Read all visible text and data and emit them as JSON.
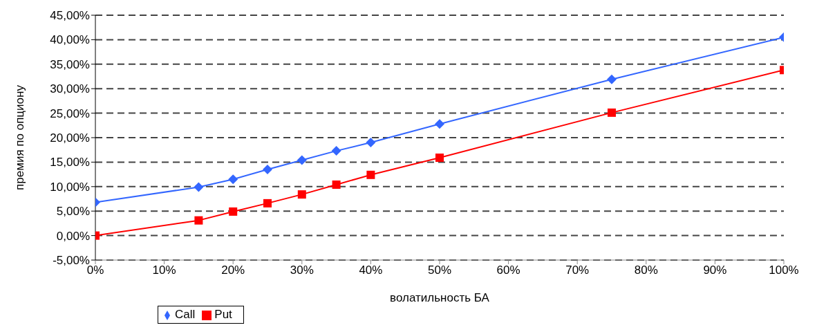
{
  "chart_data": {
    "type": "line",
    "xlabel": "волатильность БА",
    "ylabel": "премия по опциону",
    "x": [
      0,
      15,
      20,
      25,
      30,
      35,
      40,
      50,
      75,
      100
    ],
    "series": [
      {
        "name": "Call",
        "color": "#3366ff",
        "marker": "diamond",
        "values": [
          6.8,
          9.9,
          11.5,
          13.5,
          15.4,
          17.3,
          19.0,
          22.8,
          31.9,
          40.5
        ]
      },
      {
        "name": "Put",
        "color": "#ff0000",
        "marker": "square",
        "values": [
          0,
          3.1,
          4.9,
          6.6,
          8.4,
          10.4,
          12.4,
          15.9,
          25.1,
          33.8
        ]
      }
    ],
    "xlim": [
      0,
      100
    ],
    "xticks": [
      {
        "value": 0,
        "label": "0%"
      },
      {
        "value": 10,
        "label": "10%"
      },
      {
        "value": 20,
        "label": "20%"
      },
      {
        "value": 30,
        "label": "30%"
      },
      {
        "value": 40,
        "label": "40%"
      },
      {
        "value": 50,
        "label": "50%"
      },
      {
        "value": 60,
        "label": "60%"
      },
      {
        "value": 70,
        "label": "70%"
      },
      {
        "value": 80,
        "label": "80%"
      },
      {
        "value": 90,
        "label": "90%"
      },
      {
        "value": 100,
        "label": "100%"
      }
    ],
    "ylim": [
      -5,
      45
    ],
    "yticks": [
      {
        "value": -5,
        "label": "-5,00%"
      },
      {
        "value": 0,
        "label": "0,00%"
      },
      {
        "value": 5,
        "label": "5,00%"
      },
      {
        "value": 10,
        "label": "10,00%"
      },
      {
        "value": 15,
        "label": "15,00%"
      },
      {
        "value": 20,
        "label": "20,00%"
      },
      {
        "value": 25,
        "label": "25,00%"
      },
      {
        "value": 30,
        "label": "30,00%"
      },
      {
        "value": 35,
        "label": "35,00%"
      },
      {
        "value": 40,
        "label": "40,00%"
      },
      {
        "value": 45,
        "label": "45,00%"
      }
    ],
    "grid": "y",
    "line_style": "solid",
    "legend": "bottom left"
  }
}
